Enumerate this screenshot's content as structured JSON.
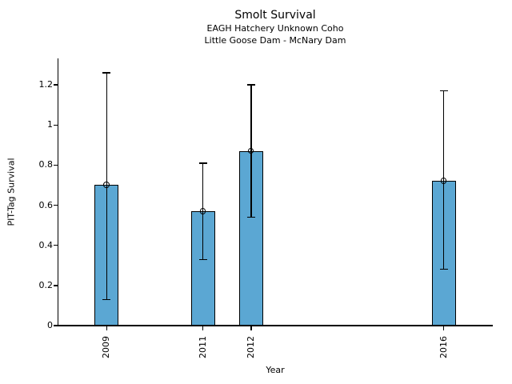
{
  "chart_data": {
    "type": "bar",
    "title": "Smolt Survival",
    "subtitles": [
      "EAGH Hatchery Unknown Coho",
      "Little Goose Dam - McNary Dam"
    ],
    "xlabel": "Year",
    "ylabel": "PIT-Tag Survival",
    "x": [
      2009,
      2011,
      2012,
      2016
    ],
    "x_tick_labels": [
      "2009",
      "2011",
      "2012",
      "2016"
    ],
    "values": [
      0.7,
      0.57,
      0.87,
      0.72
    ],
    "error_low": [
      0.13,
      0.33,
      0.54,
      0.28
    ],
    "error_high": [
      1.26,
      0.81,
      1.2,
      1.17
    ],
    "xlim": [
      2008,
      2017
    ],
    "ylim": [
      0,
      1.332
    ],
    "yticks": [
      0,
      0.2,
      0.4,
      0.6,
      0.8,
      1,
      1.2
    ],
    "ytick_labels": [
      "0",
      "0.2",
      "0.4",
      "0.6",
      "0.8",
      "1",
      "1.2"
    ],
    "bar_width_years": 0.5,
    "bar_color": "#5BA7D3",
    "bar_edge_color": "#000000",
    "error_color": "#000000",
    "marker": "open-circle",
    "grid": false,
    "legend": null,
    "background": "#FFFFFF"
  }
}
